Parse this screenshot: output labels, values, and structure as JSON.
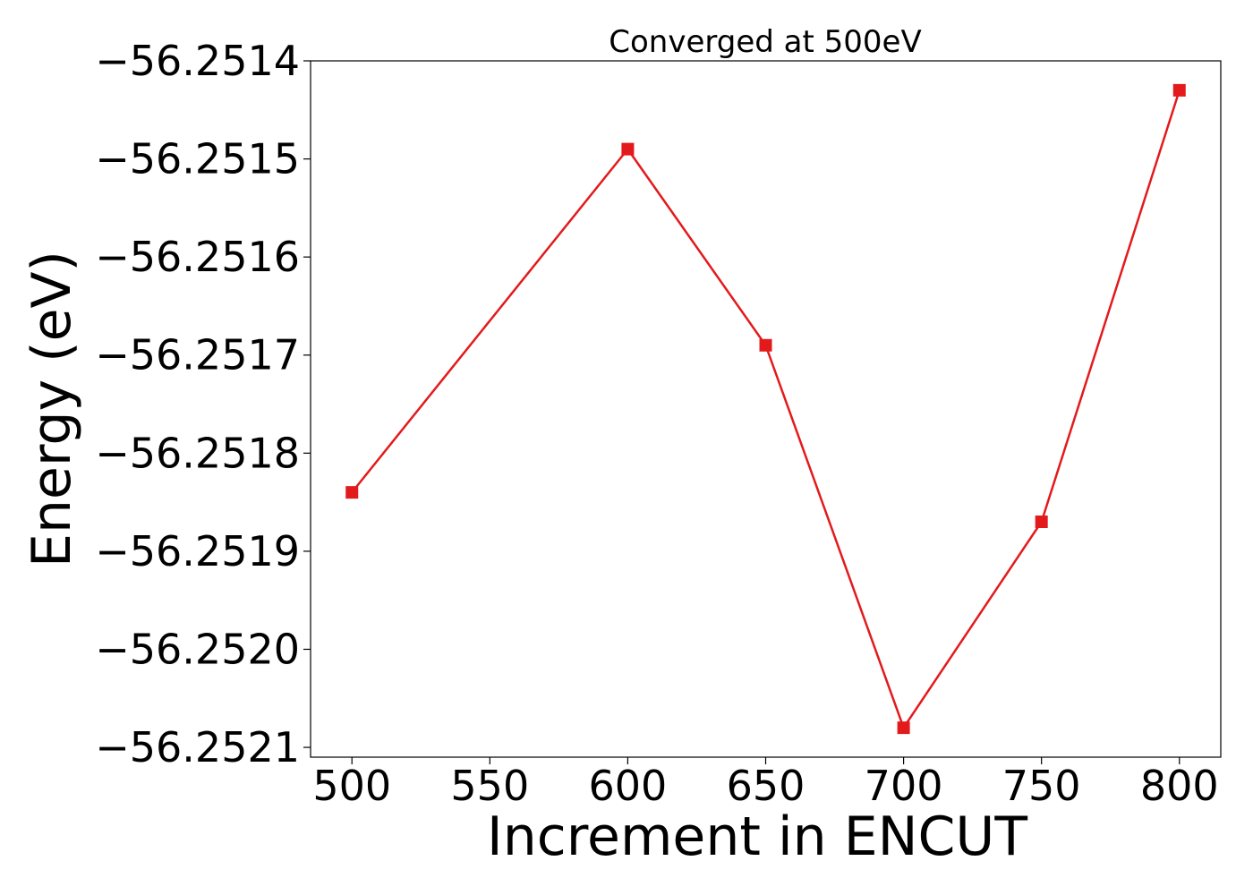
{
  "chart_data": {
    "type": "line",
    "title": "Converged at 500eV",
    "xlabel": "Increment in ENCUT",
    "ylabel": "Energy (eV)",
    "x": [
      500,
      600,
      650,
      700,
      750,
      800
    ],
    "series": [
      {
        "values": [
          -56.25184,
          -56.25149,
          -56.25169,
          -56.25208,
          -56.25187,
          -56.25143
        ]
      }
    ],
    "xticks": [
      500,
      550,
      600,
      650,
      700,
      750,
      800
    ],
    "xtick_labels": [
      "500",
      "550",
      "600",
      "650",
      "700",
      "750",
      "800"
    ],
    "yticks": [
      -56.2514,
      -56.2515,
      -56.2516,
      -56.2517,
      -56.2518,
      -56.2519,
      -56.252,
      -56.2521
    ],
    "ytick_labels": [
      "−56.2514",
      "−56.2515",
      "−56.2516",
      "−56.2517",
      "−56.2518",
      "−56.2519",
      "−56.2520",
      "−56.2521"
    ],
    "xlim": [
      485,
      815
    ],
    "ylim": [
      -56.25211,
      -56.2514
    ],
    "grid": false,
    "legend": "none",
    "marker": "square",
    "color": "#e31a1c"
  }
}
